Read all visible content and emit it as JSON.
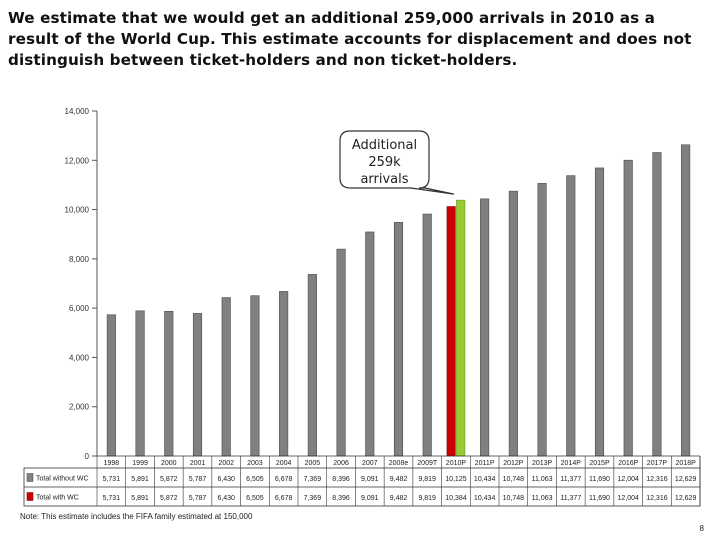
{
  "page": {
    "title": "We estimate that we would get an additional 259,000 arrivals in 2010 as a result of the World Cup. This estimate accounts for displacement and does not distinguish between ticket-holders and non ticket-holders.",
    "note": "Note: This estimate includes the FIFA family estimated at 150,000",
    "page_number": "8"
  },
  "chart_data": {
    "type": "bar",
    "title": "",
    "xlabel": "",
    "ylabel": "",
    "ylim": [
      0,
      14000
    ],
    "y_ticks": [
      0,
      2000,
      4000,
      6000,
      8000,
      10000,
      12000,
      14000
    ],
    "y_tick_labels": [
      "0",
      "2,000",
      "4,000",
      "6,000",
      "8,000",
      "10,000",
      "12,000",
      "14,000"
    ],
    "grid": false,
    "categories": [
      "1998",
      "1999",
      "2000",
      "2001",
      "2002",
      "2003",
      "2004",
      "2005",
      "2006",
      "2007",
      "2008e",
      "2009T",
      "2010P",
      "2011P",
      "2012P",
      "2013P",
      "2014P",
      "2015P",
      "2016P",
      "2017P",
      "2018P"
    ],
    "series": [
      {
        "name": "Total without WC",
        "color": "#808080",
        "values": [
          5731,
          5891,
          5872,
          5787,
          6430,
          6505,
          6678,
          7369,
          8396,
          9091,
          9482,
          9819,
          10125,
          10434,
          10748,
          11063,
          11377,
          11690,
          12004,
          12316,
          12629
        ],
        "labels": [
          "5,731",
          "5,891",
          "5,872",
          "5,787",
          "6,430",
          "6,505",
          "6,678",
          "7,369",
          "8,396",
          "9,091",
          "9,482",
          "9,819",
          "10,125",
          "10,434",
          "10,748",
          "11,063",
          "11,377",
          "11,690",
          "12,004",
          "12,316",
          "12,629"
        ]
      },
      {
        "name": "Total with WC",
        "color": "#cc0000",
        "values": [
          5731,
          5891,
          5872,
          5787,
          6430,
          6505,
          6678,
          7369,
          8396,
          9091,
          9482,
          9819,
          10384,
          10434,
          10748,
          11063,
          11377,
          11690,
          12004,
          12316,
          12629
        ],
        "labels": [
          "5,731",
          "5,891",
          "5,872",
          "5,787",
          "6,430",
          "6,505",
          "6,678",
          "7,369",
          "8,396",
          "9,091",
          "9,482",
          "9,819",
          "10,384",
          "10,434",
          "10,748",
          "11,063",
          "11,377",
          "11,690",
          "12,004",
          "12,316",
          "12,629"
        ]
      }
    ],
    "highlight": {
      "category": "2010P",
      "without_wc_color": "#cc0000",
      "with_wc_color": "#99cc33"
    },
    "annotation": {
      "lines": [
        "Additional",
        "259k",
        "arrivals"
      ]
    },
    "legend": "data-table-below-chart"
  }
}
